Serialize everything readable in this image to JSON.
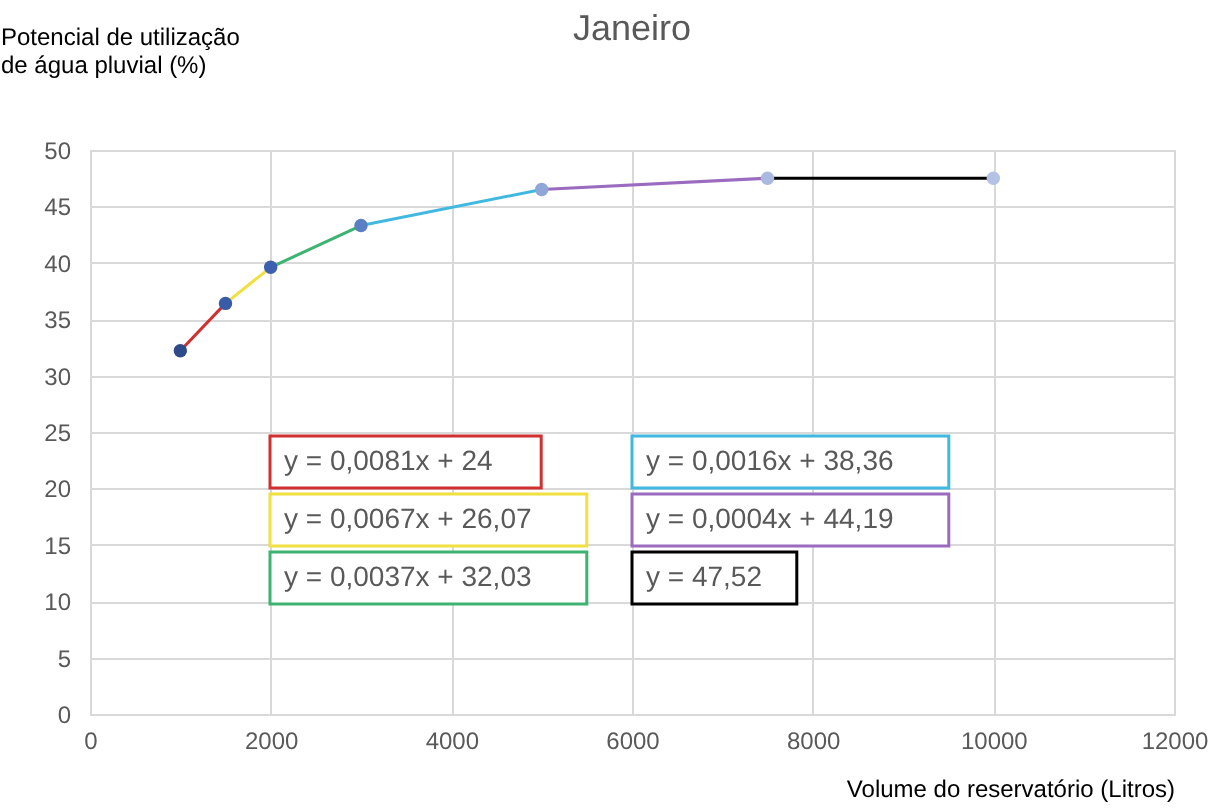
{
  "chart_data": {
    "type": "scatter",
    "title": "Janeiro",
    "xlabel": "Volume do reservatório (Litros)",
    "ylabel": "Potencial de utilização\nde água pluvial (%)",
    "xlim": [
      0,
      12000
    ],
    "xticks": [
      0,
      2000,
      4000,
      6000,
      8000,
      10000,
      12000
    ],
    "ylim": [
      0,
      50
    ],
    "yticks": [
      0,
      5,
      10,
      15,
      20,
      25,
      30,
      35,
      40,
      45,
      50
    ],
    "grid": true,
    "legend": false,
    "marker": "circle",
    "series": [
      {
        "x": [
          1000,
          1500,
          2000,
          3000,
          5000,
          7500,
          10000
        ],
        "values": [
          32.2,
          36.4,
          39.6,
          43.3,
          46.5,
          47.5,
          47.5
        ],
        "colors": [
          "#2e4a8a",
          "#3a5ba8",
          "#3d5fb0",
          "#5a7fc4",
          "#8ea6d8",
          "#a9b9e0",
          "#b4c2e6"
        ]
      },
      {
        "type": "line",
        "name": "y = 0,0081x + 24",
        "color": "#d03030",
        "marker": "none",
        "x": [
          1000,
          1500
        ],
        "values": [
          32.2,
          36.4
        ]
      },
      {
        "type": "line",
        "name": "y = 0,0067x + 26,07",
        "color": "#f0e040",
        "marker": "none",
        "x": [
          1500,
          2000
        ],
        "values": [
          36.4,
          39.6
        ]
      },
      {
        "type": "line",
        "name": "y = 0,0037x + 32,03",
        "color": "#3cb371",
        "marker": "none",
        "x": [
          2000,
          3000
        ],
        "values": [
          39.6,
          43.3
        ]
      },
      {
        "type": "line",
        "name": "y = 0,0016x + 38,36",
        "color": "#40b8e0",
        "marker": "none",
        "x": [
          3000,
          5000
        ],
        "values": [
          43.3,
          46.5
        ]
      },
      {
        "type": "line",
        "name": "y = 0,0004x + 44,19",
        "color": "#9b6bc0",
        "marker": "none",
        "x": [
          5000,
          7500
        ],
        "values": [
          46.5,
          47.5
        ]
      },
      {
        "type": "line",
        "name": "y = 47,52",
        "color": "#000000",
        "marker": "none",
        "x": [
          7500,
          10000
        ],
        "values": [
          47.5,
          47.5
        ]
      }
    ]
  }
}
